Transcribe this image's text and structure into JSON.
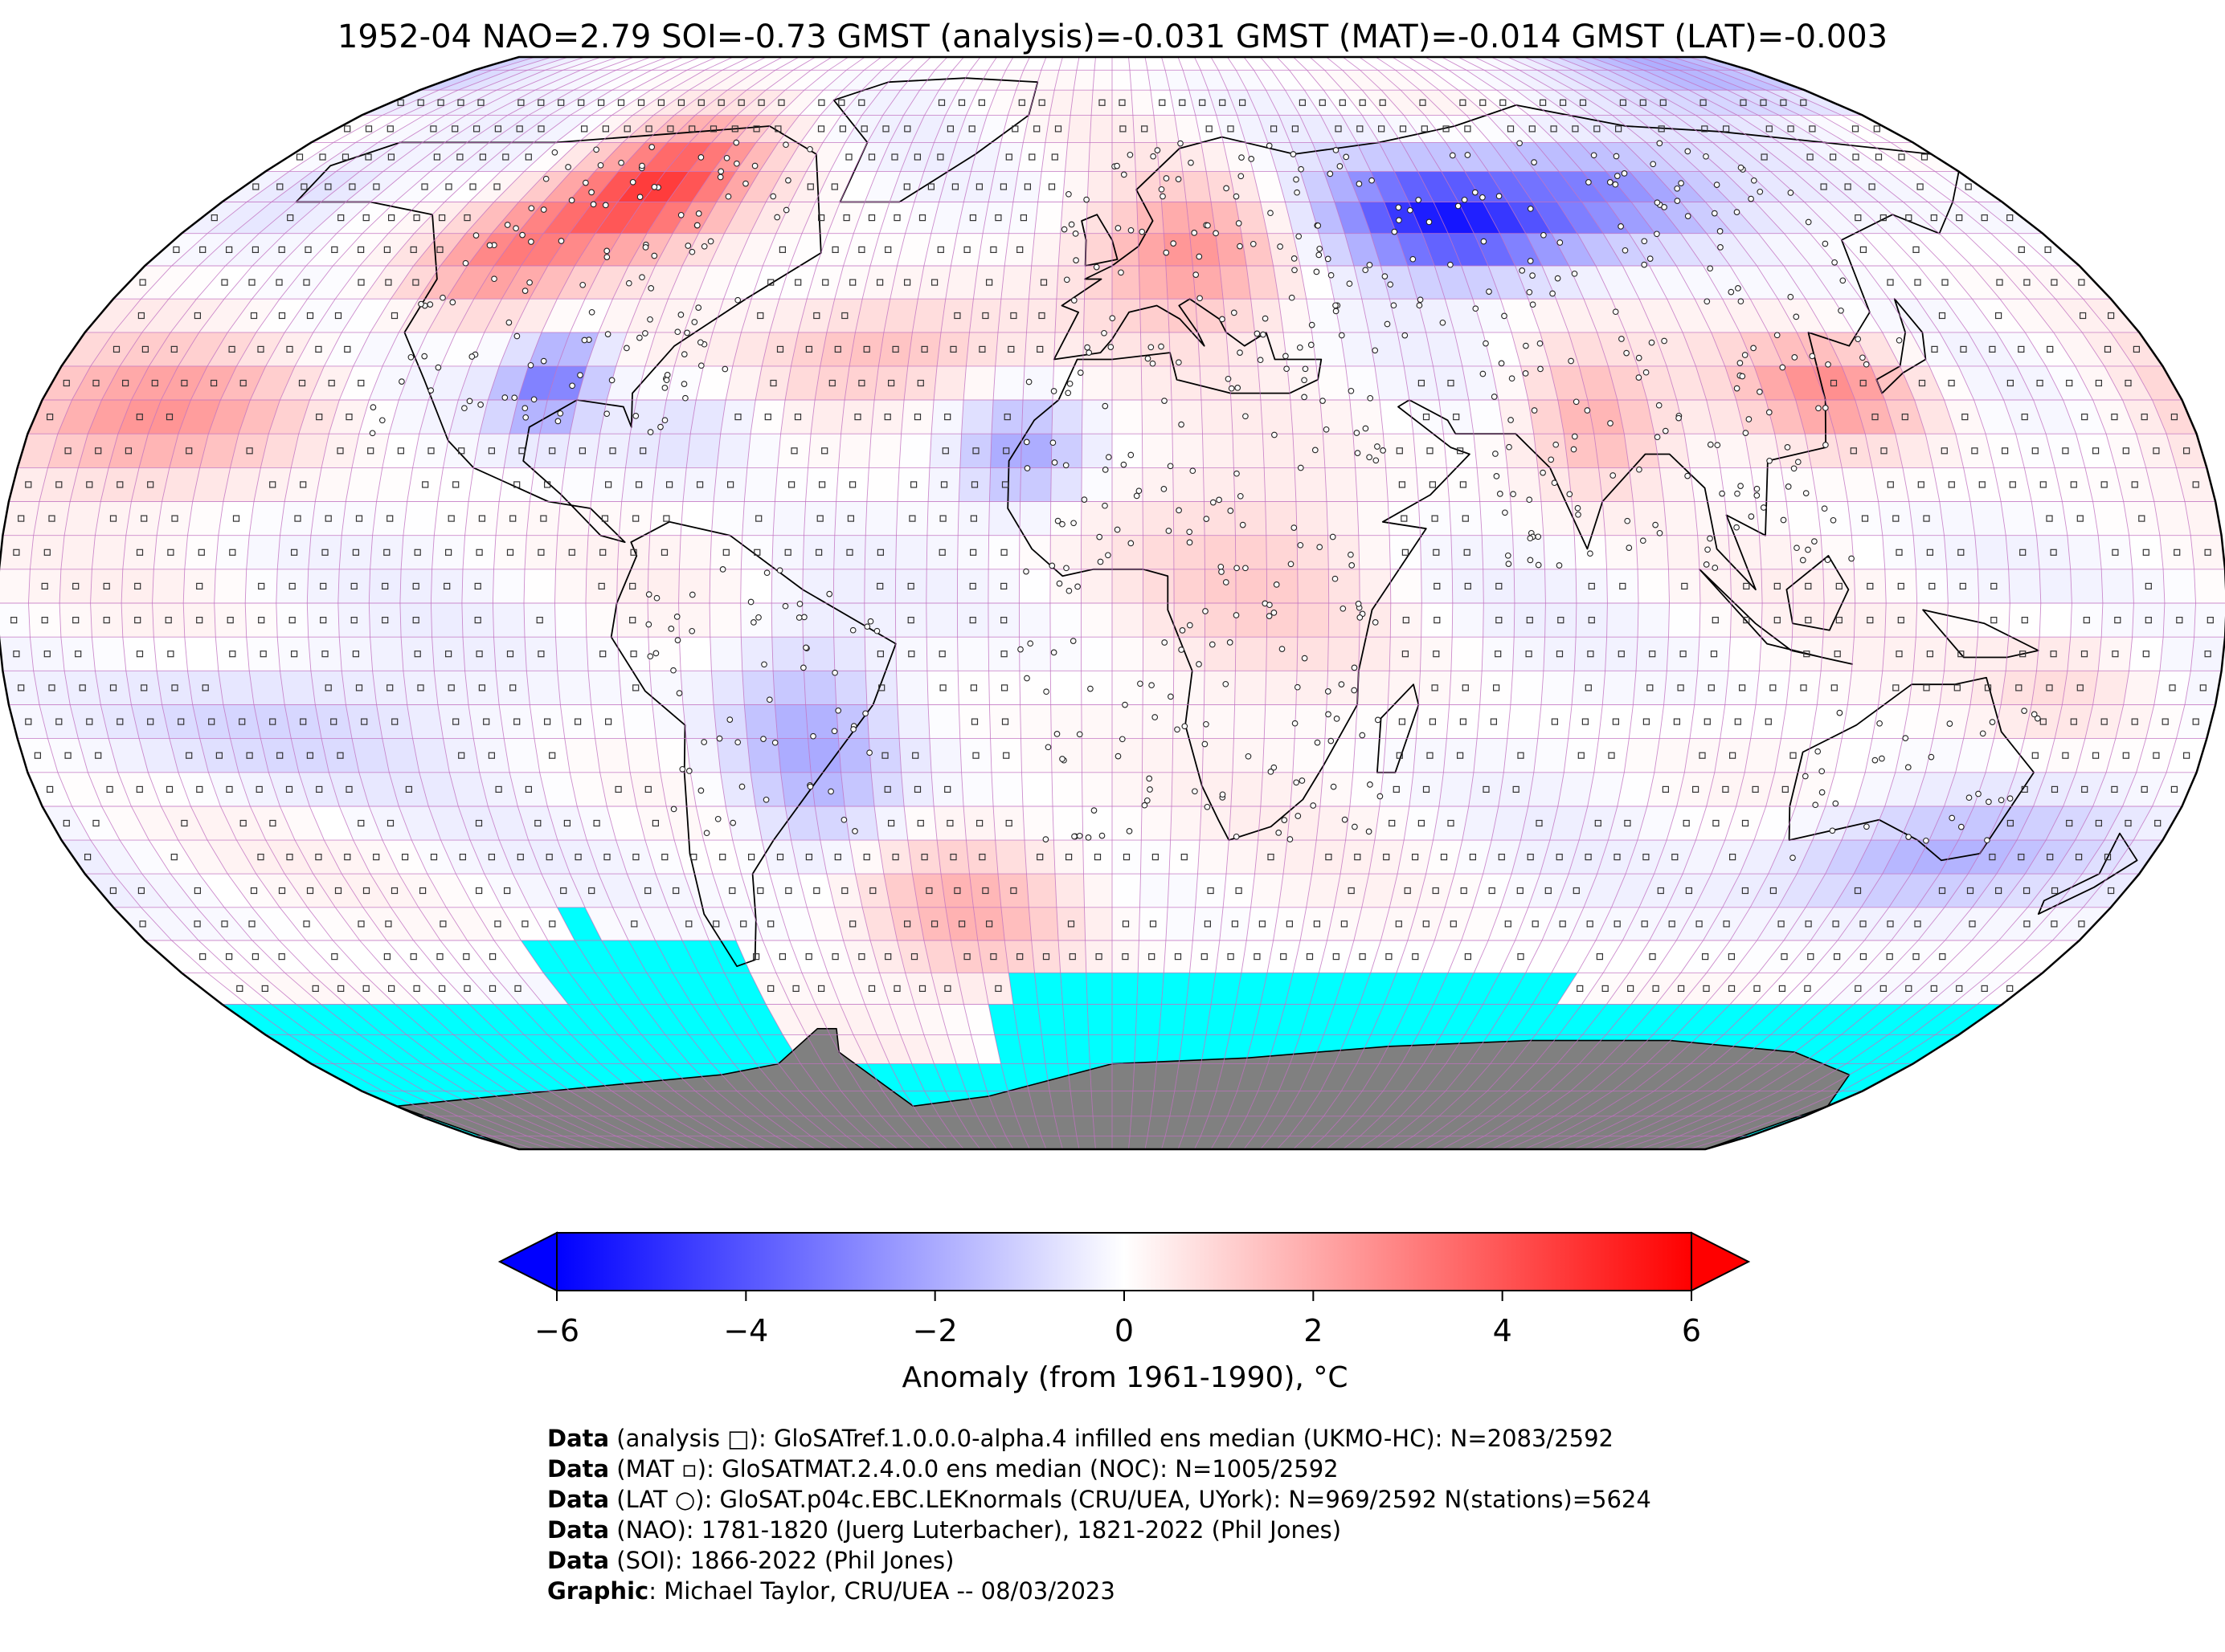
{
  "title": "1952-04 NAO=2.79 SOI=-0.73 GMST (analysis)=-0.031 GMST (MAT)=-0.014 GMST (LAT)=-0.003",
  "colors": {
    "cold": "#0000ff",
    "warm": "#ff0000",
    "neutral": "#ffffff",
    "sea_ice_mask": "#00ffff",
    "antarctica_land": "#808080",
    "grid_lines": "#c070c0"
  },
  "icons": [
    "analysis-square-marker",
    "mat-small-square-marker",
    "lat-circle-marker"
  ],
  "colorbar": {
    "ticks": [
      "−6",
      "−4",
      "−2",
      "0",
      "2",
      "4",
      "6"
    ],
    "tick_values": [
      -6,
      -4,
      -2,
      0,
      2,
      4,
      6
    ],
    "range": [
      -6,
      6
    ],
    "label": "Anomaly (from 1961-1990), °C"
  },
  "credits": [
    {
      "bold": "Data",
      "text": " (analysis □): GloSATref.1.0.0.0-alpha.4 infilled ens median (UKMO-HC): N=2083/2592"
    },
    {
      "bold": "Data",
      "text": " (MAT ▫): GloSATMAT.2.4.0.0 ens median (NOC): N=1005/2592"
    },
    {
      "bold": "Data",
      "text": " (LAT ○): GloSAT.p04c.EBC.LEKnormals (CRU/UEA, UYork): N=969/2592 N(stations)=5624"
    },
    {
      "bold": "Data",
      "text": " (NAO): 1781-1820 (Juerg Luterbacher), 1821-2022 (Phil Jones)"
    },
    {
      "bold": "Data",
      "text": " (SOI): 1866-2022 (Phil Jones)"
    },
    {
      "bold": "Graphic",
      "text": ": Michael Taylor, CRU/UEA -- 08/03/2023"
    }
  ]
}
